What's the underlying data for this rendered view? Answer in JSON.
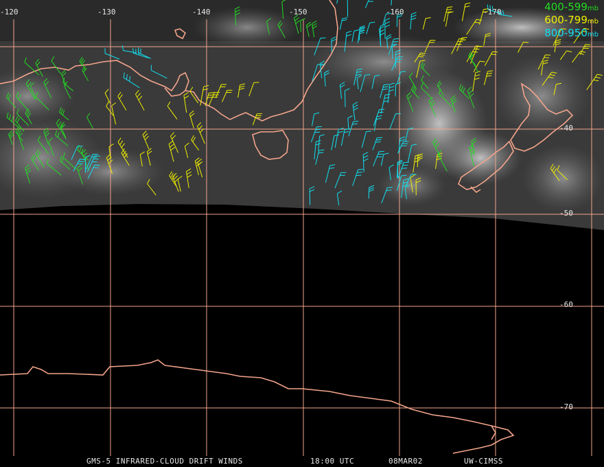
{
  "map": {
    "lon_labels": [
      "-120",
      "-130",
      "-140",
      "-150",
      "-160",
      "-170"
    ],
    "lat_labels": [
      "-40",
      "-50",
      "-60",
      "-70"
    ],
    "colors": {
      "grid": "#f4a58c",
      "coast": "#f4a58c",
      "green": "#22dd22",
      "yellow": "#f0f000",
      "cyan": "#10e0f0"
    }
  },
  "legend": {
    "items": [
      {
        "label": "400-599",
        "unit": "mb",
        "color": "#22dd22"
      },
      {
        "label": "600-799",
        "unit": "mb",
        "color": "#f0f000"
      },
      {
        "label": "800-950",
        "unit": "mb",
        "color": "#10e0f0"
      }
    ]
  },
  "footer": {
    "product": "GMS-5 INFRARED-CLOUD DRIFT WINDS",
    "time": "18:00 UTC",
    "date": "08MAR02",
    "source": "UW-CIMSS"
  }
}
